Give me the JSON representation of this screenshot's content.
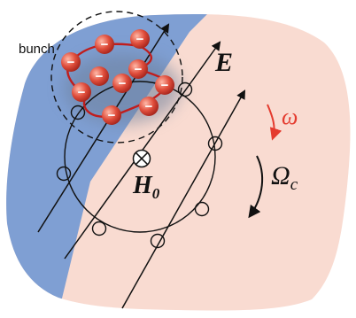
{
  "labels": {
    "bunch": "bunch",
    "E": "E",
    "omega": "ω",
    "Omega_c": "Ω",
    "Omega_c_sub": "c",
    "H0": "H",
    "H0_sub": "0"
  },
  "colors": {
    "blob_blue": "#7f9fd3",
    "blob_pink": "#f9dbd1",
    "red_curve": "#c01d1d",
    "electron": "#e04e3c",
    "omega_arrow": "#e43a2e",
    "ink": "#111111"
  },
  "electron_sign": "−"
}
